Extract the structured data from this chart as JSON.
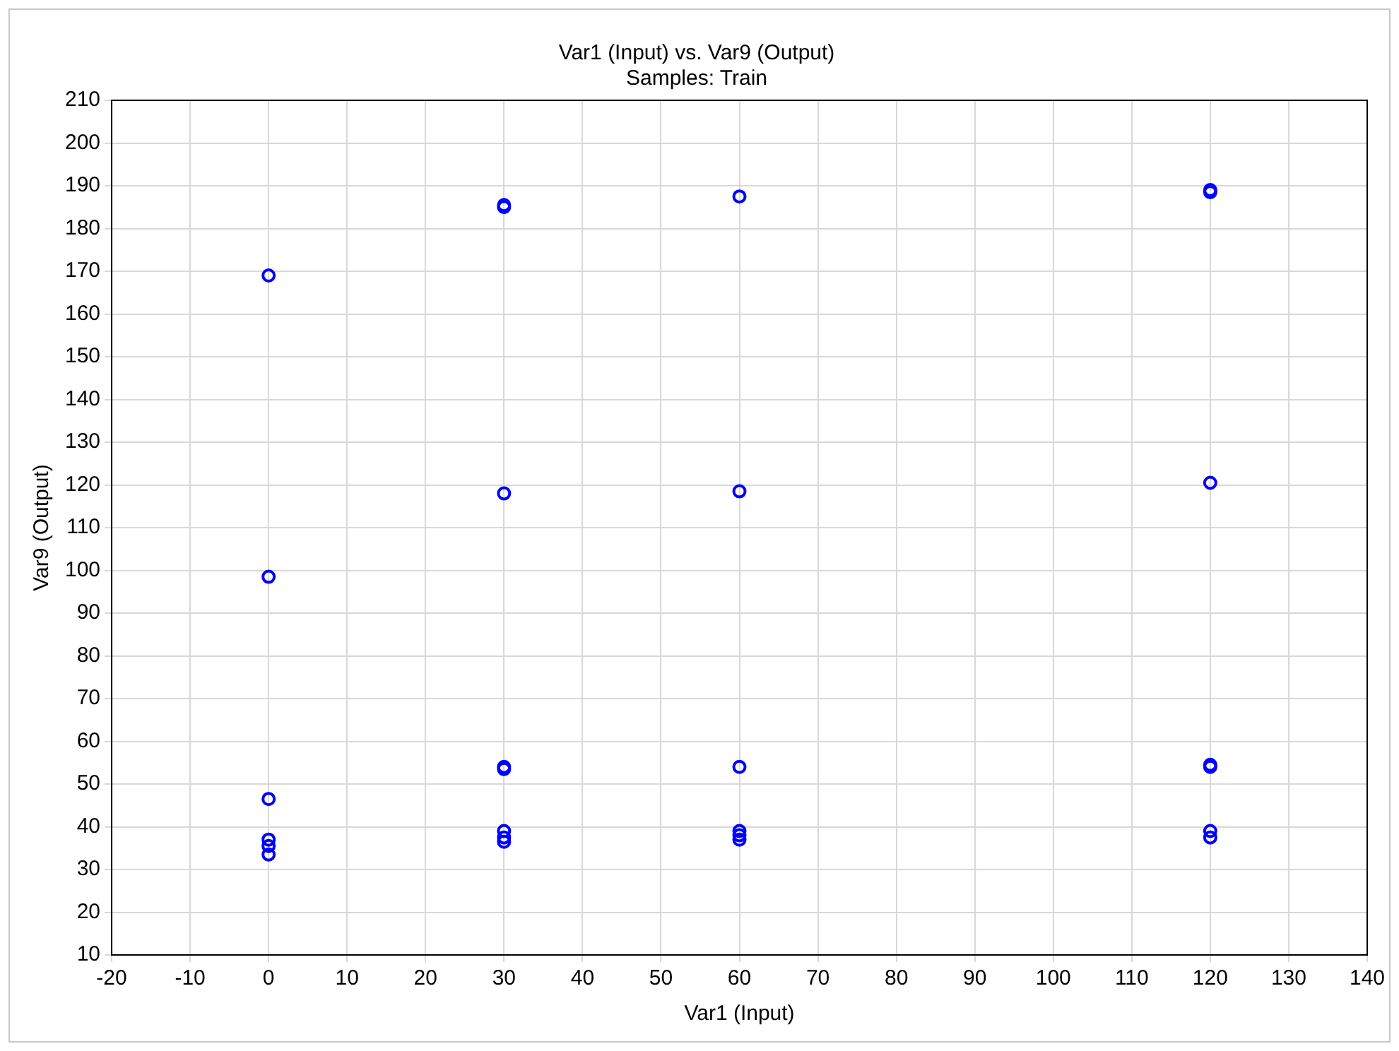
{
  "chart_data": {
    "type": "scatter",
    "title": "Var1 (Input) vs. Var9 (Output)",
    "subtitle": "Samples: Train",
    "xlabel": "Var1 (Input)",
    "ylabel": "Var9 (Output)",
    "series": [
      {
        "color": "#0000ff",
        "x": [
          0,
          0,
          0,
          0,
          0,
          0,
          30,
          30,
          30,
          30,
          30,
          30,
          30,
          30,
          60,
          60,
          60,
          60,
          60,
          60,
          120,
          120,
          120,
          120,
          120,
          120,
          120
        ],
        "values": [
          169,
          98.5,
          46.5,
          37,
          35.5,
          33.5,
          185.5,
          185,
          118,
          54,
          53.5,
          39,
          37.5,
          36.5,
          187.5,
          118.5,
          54,
          39,
          38,
          37,
          189,
          188.5,
          120.5,
          54.5,
          54,
          39,
          37.5
        ]
      }
    ],
    "xlim": [
      -20,
      140
    ],
    "xticks": [
      -20,
      -10,
      0,
      10,
      20,
      30,
      40,
      50,
      60,
      70,
      80,
      90,
      100,
      110,
      120,
      130,
      140
    ],
    "ylim": [
      10,
      210
    ],
    "yticks": [
      10,
      20,
      30,
      40,
      50,
      60,
      70,
      80,
      90,
      100,
      110,
      120,
      130,
      140,
      150,
      160,
      170,
      180,
      190,
      200,
      210
    ],
    "grid": true,
    "legend": false,
    "marker": "circle"
  }
}
